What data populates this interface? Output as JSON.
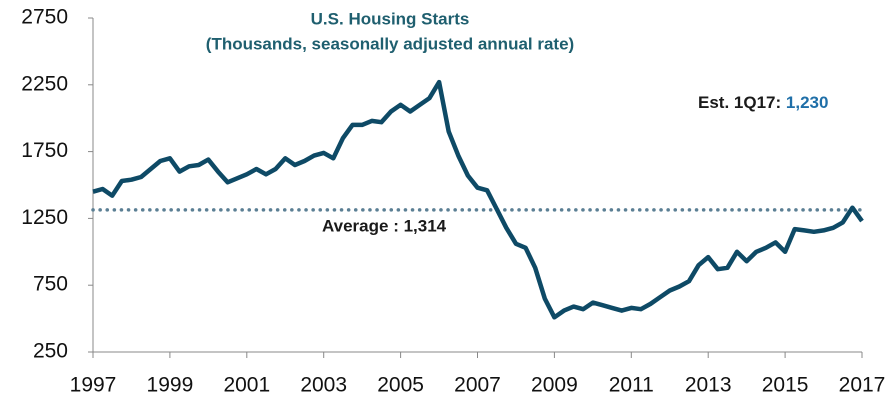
{
  "chart_data": {
    "type": "line",
    "title": "U.S. Housing Starts",
    "subtitle": "(Thousands, seasonally adjusted annual rate)",
    "x": [
      1997,
      1997.25,
      1997.5,
      1997.75,
      1998,
      1998.25,
      1998.5,
      1998.75,
      1999,
      1999.25,
      1999.5,
      1999.75,
      2000,
      2000.25,
      2000.5,
      2000.75,
      2001,
      2001.25,
      2001.5,
      2001.75,
      2002,
      2002.25,
      2002.5,
      2002.75,
      2003,
      2003.25,
      2003.5,
      2003.75,
      2004,
      2004.25,
      2004.5,
      2004.75,
      2005,
      2005.25,
      2005.5,
      2005.75,
      2006,
      2006.25,
      2006.5,
      2006.75,
      2007,
      2007.25,
      2007.5,
      2007.75,
      2008,
      2008.25,
      2008.5,
      2008.75,
      2009,
      2009.25,
      2009.5,
      2009.75,
      2010,
      2010.25,
      2010.5,
      2010.75,
      2011,
      2011.25,
      2011.5,
      2011.75,
      2012,
      2012.25,
      2012.5,
      2012.75,
      2013,
      2013.25,
      2013.5,
      2013.75,
      2014,
      2014.25,
      2014.5,
      2014.75,
      2015,
      2015.25,
      2015.5,
      2015.75,
      2016,
      2016.25,
      2016.5,
      2016.75,
      2017
    ],
    "values": [
      1450,
      1470,
      1420,
      1530,
      1540,
      1560,
      1620,
      1680,
      1700,
      1600,
      1640,
      1650,
      1690,
      1600,
      1520,
      1550,
      1580,
      1620,
      1580,
      1620,
      1700,
      1650,
      1680,
      1720,
      1740,
      1700,
      1850,
      1950,
      1950,
      1980,
      1970,
      2050,
      2100,
      2050,
      2100,
      2150,
      2270,
      1900,
      1720,
      1570,
      1480,
      1460,
      1320,
      1180,
      1060,
      1030,
      880,
      650,
      510,
      560,
      590,
      570,
      620,
      600,
      580,
      560,
      580,
      570,
      610,
      660,
      710,
      740,
      780,
      900,
      960,
      870,
      880,
      1000,
      930,
      1000,
      1030,
      1070,
      1000,
      1170,
      1160,
      1150,
      1160,
      1180,
      1220,
      1330,
      1230
    ],
    "color": "#0e4a66",
    "xlim": [
      1997,
      2017
    ],
    "xticks": [
      1997,
      1999,
      2001,
      2003,
      2005,
      2007,
      2009,
      2011,
      2013,
      2015,
      2017
    ],
    "ylim": [
      250,
      2750
    ],
    "yticks": [
      250,
      750,
      1250,
      1750,
      2250,
      2750
    ],
    "average": {
      "label": "Average : 1,314",
      "value": 1314,
      "color": "#5b7f94"
    },
    "annotation": {
      "text": "Est. 1Q17:",
      "value": 1230,
      "value_label": "1,230",
      "value_color": "#1f6fa8"
    }
  }
}
